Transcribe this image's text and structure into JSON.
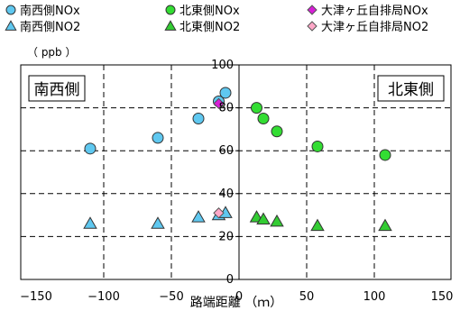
{
  "chart_data": {
    "type": "scatter",
    "xlabel": "路端距離 （ｍ）",
    "yunit": "（ ppb ）",
    "xlim": [
      -150,
      150
    ],
    "ylim": [
      0,
      100
    ],
    "xticks": [
      -150,
      -100,
      -50,
      0,
      50,
      100,
      150
    ],
    "yticks": [
      0,
      20,
      40,
      60,
      80,
      100
    ],
    "xtick_labels": [
      "−150",
      "−100",
      "−50",
      "0",
      "50",
      "100",
      "150"
    ],
    "ytick_labels": [
      "0",
      "20",
      "40",
      "60",
      "80",
      "100"
    ],
    "grid": "dashed horizontal and vertical",
    "legend_position": "top",
    "annotations": {
      "left": "南西側",
      "right": "北東側"
    },
    "series": [
      {
        "name": "南西側NOx",
        "marker": "circle",
        "color": "#5fc8f0",
        "points": [
          [
            -110,
            61
          ],
          [
            -60,
            66
          ],
          [
            -30,
            75
          ],
          [
            -15,
            83
          ],
          [
            -10,
            87
          ]
        ]
      },
      {
        "name": "北東側NOx",
        "marker": "circle",
        "color": "#33dd33",
        "points": [
          [
            13,
            80
          ],
          [
            18,
            75
          ],
          [
            28,
            69
          ],
          [
            58,
            62
          ],
          [
            108,
            58
          ]
        ]
      },
      {
        "name": "大津ヶ丘自排局NOx",
        "marker": "diamond",
        "color": "#d71fd7",
        "points": [
          [
            -15,
            82
          ]
        ]
      },
      {
        "name": "南西側NO2",
        "marker": "triangle",
        "color": "#5fc8f0",
        "points": [
          [
            -110,
            26
          ],
          [
            -60,
            26
          ],
          [
            -30,
            29
          ],
          [
            -15,
            30
          ],
          [
            -10,
            31
          ]
        ]
      },
      {
        "name": "北東側NO2",
        "marker": "triangle",
        "color": "#33cc33",
        "points": [
          [
            13,
            29
          ],
          [
            18,
            28
          ],
          [
            28,
            27
          ],
          [
            58,
            25
          ],
          [
            108,
            25
          ]
        ]
      },
      {
        "name": "大津ヶ丘自排局NO2",
        "marker": "diamond",
        "color": "#ffa8c8",
        "points": [
          [
            -15,
            31
          ]
        ]
      }
    ]
  }
}
